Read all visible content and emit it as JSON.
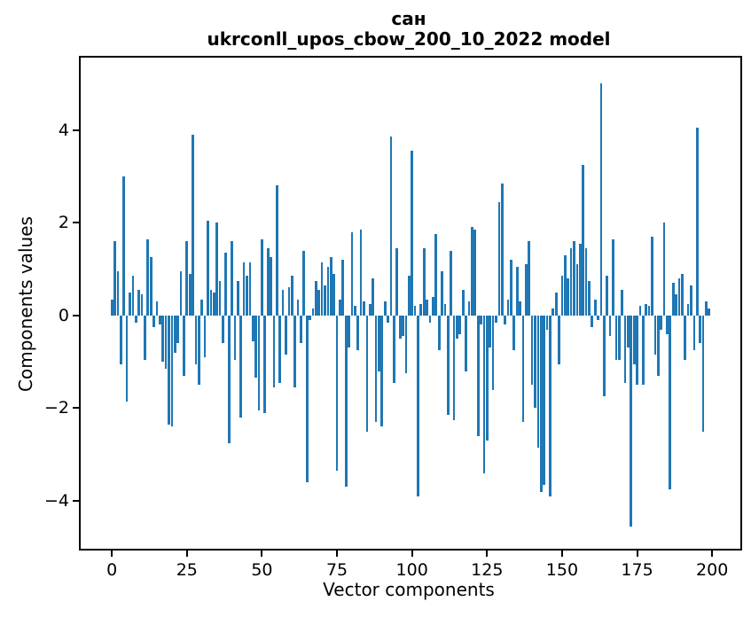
{
  "title_line1": "сан",
  "title_line2": "ukrconll_upos_cbow_200_10_2022 model",
  "xlabel": "Vector components",
  "ylabel": "Components values",
  "bar_color": "#1f77b4",
  "axis_color": "#000000",
  "background_color": "#ffffff",
  "chart_data": {
    "type": "bar",
    "title": "сан\nukrconll_upos_cbow_200_10_2022 model",
    "xlabel": "Vector components",
    "ylabel": "Components values",
    "n_bars": 200,
    "x_ticks": [
      0,
      25,
      50,
      75,
      100,
      125,
      150,
      175,
      200
    ],
    "y_ticks": [
      -4,
      -2,
      0,
      2,
      4
    ],
    "xlim": [
      -10.4,
      209.4
    ],
    "ylim": [
      -5.03,
      5.56
    ],
    "grid": false,
    "legend": "none",
    "values": [
      0.35,
      1.6,
      0.95,
      -1.05,
      3.0,
      -1.85,
      0.5,
      0.85,
      -0.15,
      0.55,
      0.45,
      -0.95,
      1.65,
      1.25,
      -0.25,
      0.3,
      -0.2,
      -1.0,
      -1.15,
      -2.35,
      -2.4,
      -0.8,
      -0.6,
      0.95,
      -1.3,
      1.6,
      0.9,
      3.9,
      -1.05,
      -1.5,
      0.35,
      -0.9,
      2.05,
      0.55,
      0.5,
      2.0,
      0.75,
      -0.6,
      1.35,
      -2.75,
      1.6,
      -0.95,
      0.75,
      -2.2,
      1.15,
      0.85,
      1.15,
      -0.55,
      -1.35,
      -2.05,
      1.65,
      -2.1,
      1.45,
      1.25,
      -1.55,
      2.8,
      -1.45,
      0.55,
      -0.85,
      0.6,
      0.85,
      -1.55,
      0.35,
      -0.6,
      1.4,
      -3.6,
      -0.1,
      0.15,
      0.75,
      0.55,
      1.15,
      0.65,
      1.05,
      1.25,
      0.9,
      -3.35,
      0.35,
      1.2,
      -3.7,
      -0.7,
      1.8,
      0.2,
      -0.75,
      1.85,
      0.3,
      -2.5,
      0.25,
      0.8,
      -2.3,
      -1.2,
      -2.4,
      0.3,
      -0.15,
      3.85,
      -1.45,
      1.45,
      -0.5,
      -0.45,
      -1.25,
      0.85,
      3.55,
      0.2,
      -3.9,
      0.25,
      1.45,
      0.35,
      -0.15,
      0.4,
      1.75,
      -0.75,
      0.95,
      0.25,
      -2.15,
      1.4,
      -2.25,
      -0.5,
      -0.4,
      0.55,
      -1.2,
      0.3,
      1.9,
      1.85,
      -2.6,
      -0.2,
      -3.4,
      -2.7,
      -0.7,
      -1.6,
      -0.15,
      2.45,
      2.85,
      -0.2,
      0.35,
      1.2,
      -0.75,
      1.05,
      0.3,
      -2.3,
      1.1,
      1.6,
      -1.5,
      -2.0,
      -2.85,
      -3.8,
      -3.65,
      -0.3,
      -3.9,
      0.15,
      0.5,
      -1.05,
      0.85,
      1.3,
      0.8,
      1.45,
      1.6,
      1.1,
      1.55,
      3.25,
      1.45,
      0.75,
      -0.25,
      0.35,
      -0.1,
      5.0,
      -1.75,
      0.85,
      -0.45,
      1.65,
      -0.95,
      -0.95,
      0.55,
      -1.45,
      -0.7,
      -4.55,
      -1.05,
      -1.5,
      0.2,
      -1.5,
      0.25,
      0.2,
      1.7,
      -0.85,
      -1.3,
      -0.3,
      2.0,
      -0.4,
      -3.75,
      0.7,
      0.45,
      0.8,
      0.9,
      -0.95,
      0.25,
      0.65,
      -0.75,
      4.05,
      -0.6,
      -2.5,
      0.3,
      0.15
    ]
  }
}
